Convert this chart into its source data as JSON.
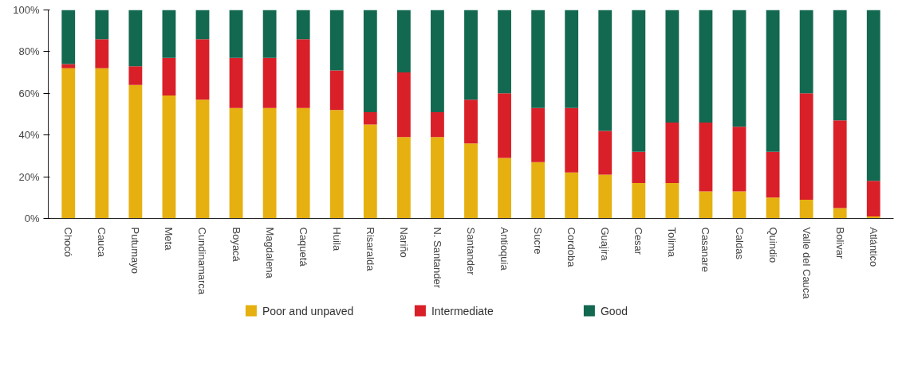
{
  "chart_data": {
    "type": "bar",
    "stacked": true,
    "categories": [
      "Chocó",
      "Cauca",
      "Putumayo",
      "Meta",
      "Cundinamarca",
      "Boyacá",
      "Magdalena",
      "Caquetá",
      "Huila",
      "Risaralda",
      "Nariño",
      "N. Santander",
      "Santander",
      "Antioquia",
      "Sucre",
      "Cordoba",
      "Guajira",
      "Cesar",
      "Tolima",
      "Casanare",
      "Caldas",
      "Quindio",
      "Valle del Cauca",
      "Bolivar",
      "Atlántico"
    ],
    "series": [
      {
        "name": "Poor and unpaved",
        "color": "#e6b010",
        "values": [
          72,
          72,
          64,
          59,
          57,
          53,
          53,
          53,
          52,
          45,
          39,
          39,
          36,
          29,
          27,
          22,
          21,
          17,
          17,
          13,
          13,
          10,
          9,
          5,
          1
        ]
      },
      {
        "name": "Intermediate",
        "color": "#d92028",
        "values": [
          2,
          14,
          9,
          18,
          29,
          24,
          24,
          33,
          19,
          6,
          31,
          12,
          21,
          31,
          26,
          31,
          21,
          15,
          29,
          33,
          31,
          22,
          51,
          42,
          17
        ]
      },
      {
        "name": "Good",
        "color": "#136850",
        "values": [
          26,
          14,
          27,
          23,
          14,
          23,
          23,
          14,
          29,
          49,
          30,
          49,
          43,
          40,
          47,
          47,
          58,
          68,
          54,
          54,
          56,
          68,
          40,
          53,
          82
        ]
      }
    ],
    "ylim": [
      0,
      100
    ],
    "yticks": [
      {
        "value": 0,
        "label": "0%"
      },
      {
        "value": 20,
        "label": "20%"
      },
      {
        "value": 40,
        "label": "40%"
      },
      {
        "value": 60,
        "label": "60%"
      },
      {
        "value": 80,
        "label": "80%"
      },
      {
        "value": 100,
        "label": "100%"
      }
    ],
    "grid": false,
    "legend": "bottom"
  }
}
